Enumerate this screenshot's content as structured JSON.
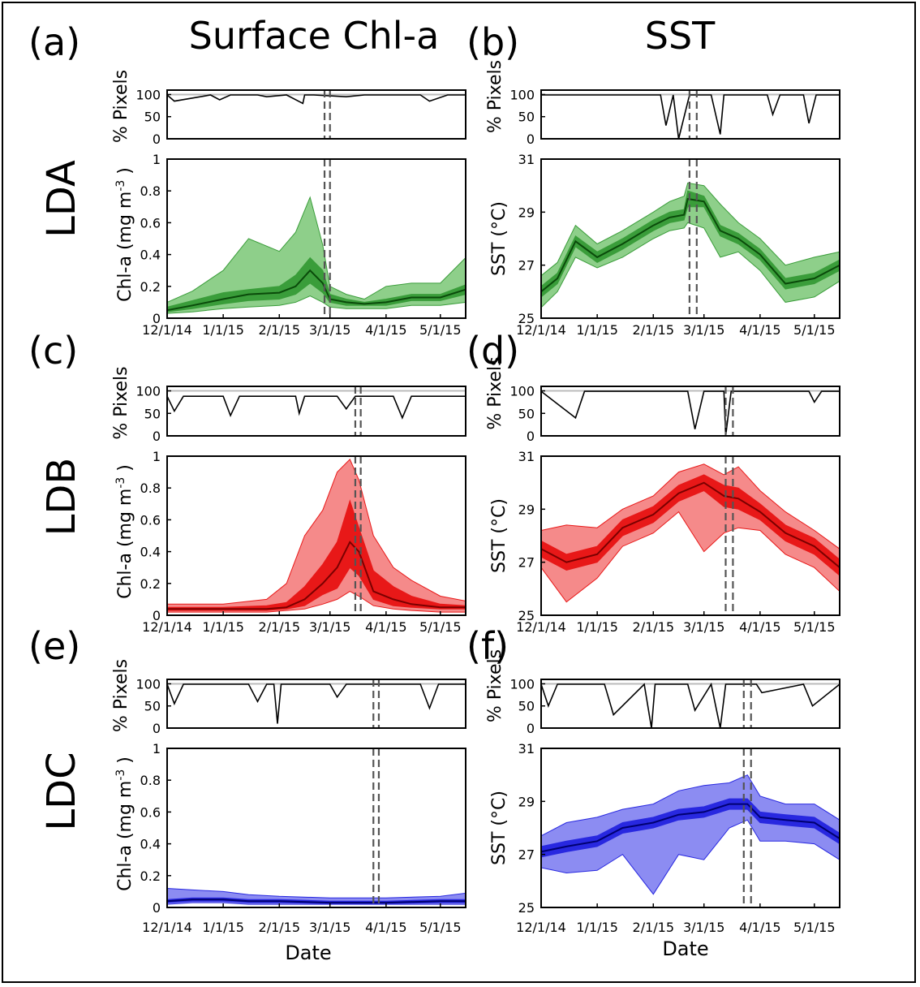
{
  "titles": {
    "left": "Surface Chl-a",
    "right": "SST"
  },
  "panel_letters": [
    "(a)",
    "(b)",
    "(c)",
    "(d)",
    "(e)",
    "(f)"
  ],
  "row_labels": [
    "LDA",
    "LDB",
    "LDC"
  ],
  "xlabel": "Date",
  "x_ticks": [
    "12/1/14",
    "1/1/15",
    "2/1/15",
    "3/1/15",
    "4/1/15",
    "5/1/15"
  ],
  "x_range": [
    "2014-12-01",
    "2015-05-15"
  ],
  "pix_ylabel": "% Pixels",
  "pix_ticks": [
    "100",
    "50",
    "0"
  ],
  "chl_ylabel": "Chl-a (mg m",
  "chl_ylabel_sup": "-3",
  "chl_ylabel_end": ")",
  "chl_ticks": [
    "1",
    "0.8",
    "0.6",
    "0.4",
    "0.2",
    "0"
  ],
  "sst_ylabel": "SST (°C)",
  "sst_ticks": [
    "31",
    "29",
    "27",
    "25"
  ],
  "colors": {
    "green": [
      "#8ecf8a",
      "#3a9d3a",
      "#0a4a0a"
    ],
    "red": [
      "#f58a8a",
      "#e81818",
      "#7a0000"
    ],
    "blue": [
      "#8c8cf2",
      "#2828e0",
      "#000070"
    ]
  },
  "chart_data": [
    {
      "panel": "(a)",
      "site": "LDA",
      "type": "area",
      "variable": "Surface Chl-a",
      "color": "green",
      "ylim": [
        0,
        1
      ],
      "dashed_lines": [
        "2015-02-26",
        "2015-03-01"
      ],
      "pixels": {
        "ylim": [
          0,
          110
        ],
        "x": [
          "2014-12-01",
          "2014-12-05",
          "2014-12-25",
          "2014-12-30",
          "2015-01-05",
          "2015-01-20",
          "2015-01-25",
          "2015-02-05",
          "2015-02-14",
          "2015-02-15",
          "2015-02-20",
          "2015-03-10",
          "2015-03-20",
          "2015-04-05",
          "2015-04-20",
          "2015-04-25",
          "2015-05-05",
          "2015-05-15"
        ],
        "y": [
          99,
          85,
          99,
          88,
          99,
          99,
          95,
          99,
          80,
          99,
          99,
          95,
          99,
          99,
          99,
          85,
          99,
          99
        ]
      },
      "median": {
        "x": [
          "2014-12-01",
          "2014-12-15",
          "2015-01-01",
          "2015-01-15",
          "2015-02-01",
          "2015-02-10",
          "2015-02-18",
          "2015-02-25",
          "2015-03-01",
          "2015-03-10",
          "2015-03-20",
          "2015-04-01",
          "2015-04-15",
          "2015-05-01",
          "2015-05-15"
        ],
        "y": [
          0.05,
          0.08,
          0.12,
          0.15,
          0.16,
          0.2,
          0.3,
          0.22,
          0.12,
          0.1,
          0.09,
          0.1,
          0.13,
          0.13,
          0.18
        ]
      },
      "inner": {
        "lo": [
          0.04,
          0.06,
          0.09,
          0.11,
          0.12,
          0.15,
          0.22,
          0.16,
          0.1,
          0.08,
          0.08,
          0.08,
          0.11,
          0.11,
          0.15
        ],
        "hi": [
          0.07,
          0.11,
          0.16,
          0.18,
          0.2,
          0.27,
          0.38,
          0.3,
          0.15,
          0.12,
          0.1,
          0.12,
          0.15,
          0.15,
          0.21
        ]
      },
      "outer": {
        "lo": [
          0.03,
          0.04,
          0.06,
          0.07,
          0.08,
          0.1,
          0.14,
          0.1,
          0.07,
          0.06,
          0.06,
          0.06,
          0.08,
          0.08,
          0.1
        ],
        "hi": [
          0.1,
          0.17,
          0.3,
          0.5,
          0.42,
          0.54,
          0.76,
          0.46,
          0.2,
          0.15,
          0.12,
          0.2,
          0.22,
          0.22,
          0.38
        ]
      }
    },
    {
      "panel": "(b)",
      "site": "LDA",
      "type": "area",
      "variable": "SST",
      "color": "green",
      "ylim": [
        25,
        31
      ],
      "dashed_lines": [
        "2015-02-21",
        "2015-02-25"
      ],
      "pixels": {
        "ylim": [
          0,
          110
        ],
        "x": [
          "2014-12-01",
          "2015-01-01",
          "2015-01-25",
          "2015-02-05",
          "2015-02-08",
          "2015-02-12",
          "2015-02-15",
          "2015-02-21",
          "2015-03-05",
          "2015-03-10",
          "2015-03-12",
          "2015-04-01",
          "2015-04-05",
          "2015-04-08",
          "2015-04-12",
          "2015-04-25",
          "2015-04-28",
          "2015-05-02",
          "2015-05-15"
        ],
        "y": [
          99,
          99,
          99,
          99,
          30,
          99,
          0,
          99,
          99,
          10,
          99,
          99,
          99,
          55,
          99,
          99,
          35,
          99,
          99
        ]
      },
      "median": {
        "x": [
          "2014-12-01",
          "2014-12-10",
          "2014-12-20",
          "2015-01-01",
          "2015-01-15",
          "2015-02-01",
          "2015-02-10",
          "2015-02-18",
          "2015-02-20",
          "2015-03-01",
          "2015-03-10",
          "2015-03-20",
          "2015-04-01",
          "2015-04-15",
          "2015-05-01",
          "2015-05-15"
        ],
        "y": [
          26.0,
          26.5,
          27.9,
          27.3,
          27.8,
          28.5,
          28.8,
          28.9,
          29.5,
          29.4,
          28.3,
          28.0,
          27.4,
          26.3,
          26.5,
          27.0
        ]
      },
      "inner": {
        "lo": [
          25.8,
          26.3,
          27.7,
          27.1,
          27.6,
          28.3,
          28.6,
          28.7,
          29.2,
          29.2,
          28.1,
          27.8,
          27.2,
          26.1,
          26.3,
          26.8
        ],
        "hi": [
          26.2,
          26.7,
          28.1,
          27.5,
          28.0,
          28.7,
          29.0,
          29.1,
          29.8,
          29.6,
          28.5,
          28.2,
          27.6,
          26.5,
          26.7,
          27.2
        ]
      },
      "outer": {
        "lo": [
          25.4,
          26.0,
          27.3,
          26.9,
          27.3,
          28.0,
          28.3,
          28.4,
          28.6,
          28.4,
          27.3,
          27.5,
          26.8,
          25.6,
          25.8,
          26.4
        ],
        "hi": [
          26.6,
          27.1,
          28.5,
          27.8,
          28.3,
          29.0,
          29.4,
          29.6,
          30.1,
          30.0,
          29.3,
          28.6,
          28.0,
          27.0,
          27.3,
          27.5
        ]
      }
    },
    {
      "panel": "(c)",
      "site": "LDB",
      "type": "area",
      "variable": "Surface Chl-a",
      "color": "red",
      "ylim": [
        0,
        1
      ],
      "dashed_lines": [
        "2015-03-15",
        "2015-03-18"
      ],
      "pixels": {
        "ylim": [
          0,
          110
        ],
        "x": [
          "2014-12-01",
          "2014-12-05",
          "2014-12-10",
          "2015-01-01",
          "2015-01-05",
          "2015-01-10",
          "2015-02-10",
          "2015-02-12",
          "2015-02-15",
          "2015-03-05",
          "2015-03-10",
          "2015-03-15",
          "2015-04-05",
          "2015-04-10",
          "2015-04-15",
          "2015-05-15"
        ],
        "y": [
          88,
          55,
          88,
          88,
          45,
          88,
          88,
          50,
          88,
          88,
          60,
          88,
          88,
          40,
          88,
          88
        ]
      },
      "median": {
        "x": [
          "2014-12-01",
          "2015-01-01",
          "2015-01-25",
          "2015-02-05",
          "2015-02-15",
          "2015-02-25",
          "2015-03-05",
          "2015-03-12",
          "2015-03-17",
          "2015-03-25",
          "2015-04-05",
          "2015-04-15",
          "2015-05-01",
          "2015-05-15"
        ],
        "y": [
          0.04,
          0.04,
          0.04,
          0.05,
          0.1,
          0.2,
          0.3,
          0.46,
          0.4,
          0.15,
          0.1,
          0.07,
          0.05,
          0.05
        ]
      },
      "inner": {
        "lo": [
          0.03,
          0.03,
          0.03,
          0.04,
          0.06,
          0.13,
          0.17,
          0.3,
          0.25,
          0.1,
          0.06,
          0.05,
          0.04,
          0.04
        ],
        "hi": [
          0.05,
          0.05,
          0.06,
          0.08,
          0.18,
          0.32,
          0.46,
          0.72,
          0.55,
          0.28,
          0.18,
          0.12,
          0.07,
          0.06
        ]
      },
      "outer": {
        "lo": [
          0.02,
          0.02,
          0.02,
          0.03,
          0.04,
          0.07,
          0.1,
          0.15,
          0.12,
          0.06,
          0.04,
          0.03,
          0.02,
          0.02
        ],
        "hi": [
          0.07,
          0.07,
          0.1,
          0.2,
          0.5,
          0.66,
          0.9,
          0.98,
          0.85,
          0.5,
          0.3,
          0.22,
          0.12,
          0.09
        ]
      }
    },
    {
      "panel": "(d)",
      "site": "LDB",
      "type": "area",
      "variable": "SST",
      "color": "red",
      "ylim": [
        25,
        31
      ],
      "dashed_lines": [
        "2015-03-13",
        "2015-03-17"
      ],
      "pixels": {
        "ylim": [
          0,
          110
        ],
        "x": [
          "2014-12-01",
          "2014-12-20",
          "2014-12-25",
          "2015-01-05",
          "2015-02-20",
          "2015-02-24",
          "2015-03-01",
          "2015-03-12",
          "2015-03-13",
          "2015-03-16",
          "2015-04-28",
          "2015-05-01",
          "2015-05-05",
          "2015-05-15"
        ],
        "y": [
          99,
          40,
          99,
          99,
          99,
          15,
          99,
          99,
          0,
          99,
          99,
          75,
          99,
          99
        ]
      },
      "median": {
        "x": [
          "2014-12-01",
          "2014-12-15",
          "2015-01-01",
          "2015-01-15",
          "2015-02-01",
          "2015-02-15",
          "2015-03-01",
          "2015-03-12",
          "2015-03-20",
          "2015-04-01",
          "2015-04-15",
          "2015-05-01",
          "2015-05-15"
        ],
        "y": [
          27.5,
          27.0,
          27.3,
          28.3,
          28.8,
          29.6,
          30.0,
          29.5,
          29.4,
          28.9,
          28.1,
          27.6,
          26.8
        ]
      },
      "inner": {
        "lo": [
          27.2,
          26.7,
          27.0,
          28.0,
          28.5,
          29.3,
          29.7,
          29.1,
          29.0,
          28.6,
          27.8,
          27.3,
          26.5
        ],
        "hi": [
          27.8,
          27.3,
          27.6,
          28.6,
          29.1,
          29.9,
          30.3,
          29.9,
          29.8,
          29.2,
          28.4,
          27.9,
          27.1
        ]
      },
      "outer": {
        "lo": [
          26.8,
          25.5,
          26.4,
          27.6,
          28.1,
          28.9,
          27.4,
          28.1,
          28.3,
          28.2,
          27.3,
          26.8,
          25.9
        ],
        "hi": [
          28.2,
          28.4,
          28.3,
          29.0,
          29.5,
          30.4,
          30.7,
          30.3,
          30.6,
          29.7,
          28.9,
          28.2,
          27.5
        ]
      }
    },
    {
      "panel": "(e)",
      "site": "LDC",
      "type": "area",
      "variable": "Surface Chl-a",
      "color": "blue",
      "ylim": [
        0,
        1
      ],
      "dashed_lines": [
        "2015-03-25",
        "2015-03-28"
      ],
      "pixels": {
        "ylim": [
          0,
          110
        ],
        "x": [
          "2014-12-01",
          "2014-12-05",
          "2014-12-10",
          "2015-01-15",
          "2015-01-20",
          "2015-01-25",
          "2015-01-29",
          "2015-01-31",
          "2015-02-02",
          "2015-03-01",
          "2015-03-05",
          "2015-03-10",
          "2015-04-20",
          "2015-04-25",
          "2015-04-30",
          "2015-05-15"
        ],
        "y": [
          99,
          55,
          99,
          99,
          60,
          99,
          99,
          10,
          99,
          99,
          70,
          99,
          99,
          45,
          99,
          99
        ]
      },
      "median": {
        "x": [
          "2014-12-01",
          "2014-12-15",
          "2015-01-01",
          "2015-01-15",
          "2015-02-01",
          "2015-03-01",
          "2015-04-01",
          "2015-05-01",
          "2015-05-15"
        ],
        "y": [
          0.04,
          0.05,
          0.05,
          0.04,
          0.04,
          0.03,
          0.03,
          0.04,
          0.04
        ]
      },
      "inner": {
        "lo": [
          0.03,
          0.04,
          0.04,
          0.03,
          0.03,
          0.025,
          0.025,
          0.03,
          0.03
        ],
        "hi": [
          0.05,
          0.06,
          0.06,
          0.05,
          0.05,
          0.04,
          0.04,
          0.05,
          0.05
        ]
      },
      "outer": {
        "lo": [
          0.02,
          0.03,
          0.03,
          0.02,
          0.02,
          0.02,
          0.02,
          0.02,
          0.02
        ],
        "hi": [
          0.12,
          0.11,
          0.1,
          0.08,
          0.07,
          0.06,
          0.06,
          0.07,
          0.09
        ]
      }
    },
    {
      "panel": "(f)",
      "site": "LDC",
      "type": "area",
      "variable": "SST",
      "color": "blue",
      "ylim": [
        25,
        31
      ],
      "dashed_lines": [
        "2015-03-23",
        "2015-03-27"
      ],
      "pixels": {
        "ylim": [
          0,
          110
        ],
        "x": [
          "2014-12-01",
          "2014-12-05",
          "2014-12-10",
          "2015-01-05",
          "2015-01-10",
          "2015-01-27",
          "2015-01-31",
          "2015-02-02",
          "2015-02-20",
          "2015-02-24",
          "2015-03-05",
          "2015-03-10",
          "2015-03-13",
          "2015-03-30",
          "2015-04-02",
          "2015-04-25",
          "2015-04-30",
          "2015-05-15"
        ],
        "y": [
          99,
          50,
          99,
          99,
          30,
          99,
          0,
          99,
          99,
          40,
          99,
          0,
          99,
          99,
          80,
          99,
          50,
          99
        ]
      },
      "median": {
        "x": [
          "2014-12-01",
          "2014-12-15",
          "2015-01-01",
          "2015-01-15",
          "2015-02-01",
          "2015-02-15",
          "2015-03-01",
          "2015-03-15",
          "2015-03-25",
          "2015-04-01",
          "2015-04-15",
          "2015-05-01",
          "2015-05-15"
        ],
        "y": [
          27.1,
          27.3,
          27.5,
          28.0,
          28.2,
          28.5,
          28.6,
          28.9,
          28.9,
          28.4,
          28.3,
          28.2,
          27.6
        ]
      },
      "inner": {
        "lo": [
          26.9,
          27.1,
          27.3,
          27.8,
          28.0,
          28.3,
          28.4,
          28.7,
          28.7,
          28.2,
          28.1,
          28.0,
          27.4
        ],
        "hi": [
          27.3,
          27.5,
          27.7,
          28.2,
          28.4,
          28.7,
          28.8,
          29.1,
          29.1,
          28.6,
          28.5,
          28.4,
          27.8
        ]
      },
      "outer": {
        "lo": [
          26.5,
          26.3,
          26.4,
          27.0,
          25.5,
          27.0,
          26.8,
          28.0,
          28.3,
          27.5,
          27.5,
          27.4,
          26.8
        ],
        "hi": [
          27.7,
          28.2,
          28.4,
          28.7,
          28.9,
          29.4,
          29.6,
          29.7,
          30.0,
          29.2,
          28.9,
          28.9,
          28.3
        ]
      }
    }
  ]
}
